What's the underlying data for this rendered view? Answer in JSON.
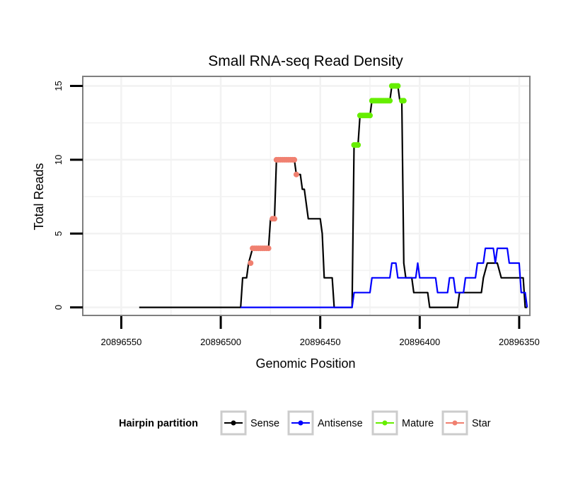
{
  "chart_data": {
    "type": "line",
    "title": "Small RNA-seq Read Density",
    "xlabel": "Genomic Position",
    "ylabel": "Total Reads",
    "x_reversed": true,
    "xlim": [
      20896569,
      20896345
    ],
    "ylim": [
      -0.5,
      15.6
    ],
    "x_ticks": [
      20896550,
      20896500,
      20896450,
      20896400,
      20896350
    ],
    "y_ticks": [
      0,
      5,
      10,
      15
    ],
    "grid": true,
    "legend": {
      "title": "Hairpin partition",
      "position": "bottom",
      "entries": [
        {
          "name": "Sense",
          "color": "#000000"
        },
        {
          "name": "Antisense",
          "color": "#0000ff"
        },
        {
          "name": "Mature",
          "color": "#66ee00"
        },
        {
          "name": "Star",
          "color": "#f08070"
        }
      ]
    },
    "series": [
      {
        "name": "Sense",
        "color": "#000000",
        "points": [
          [
            20896541,
            0
          ],
          [
            20896490,
            0
          ],
          [
            20896489,
            2
          ],
          [
            20896487,
            2
          ],
          [
            20896486,
            3
          ],
          [
            20896484,
            4
          ],
          [
            20896476,
            4
          ],
          [
            20896475,
            6
          ],
          [
            20896473,
            6
          ],
          [
            20896472,
            10
          ],
          [
            20896463,
            10
          ],
          [
            20896462,
            9
          ],
          [
            20896460,
            9
          ],
          [
            20896459,
            8
          ],
          [
            20896458,
            8
          ],
          [
            20896456,
            6
          ],
          [
            20896450,
            6
          ],
          [
            20896449,
            5
          ],
          [
            20896448,
            2
          ],
          [
            20896444,
            2
          ],
          [
            20896443,
            0
          ],
          [
            20896434,
            0
          ],
          [
            20896433,
            11
          ],
          [
            20896431,
            11
          ],
          [
            20896430,
            13
          ],
          [
            20896425,
            13
          ],
          [
            20896424,
            14
          ],
          [
            20896415,
            14
          ],
          [
            20896414,
            15
          ],
          [
            20896411,
            15
          ],
          [
            20896410,
            14
          ],
          [
            20896409,
            14
          ],
          [
            20896408,
            3
          ],
          [
            20896407,
            2
          ],
          [
            20896404,
            2
          ],
          [
            20896403,
            1
          ],
          [
            20896396,
            1
          ],
          [
            20896395,
            0
          ],
          [
            20896381,
            0
          ],
          [
            20896380,
            1
          ],
          [
            20896369,
            1
          ],
          [
            20896368,
            2
          ],
          [
            20896366,
            3
          ],
          [
            20896361,
            3
          ],
          [
            20896359,
            2
          ],
          [
            20896348,
            2
          ],
          [
            20896347,
            0
          ],
          [
            20896346,
            0
          ]
        ]
      },
      {
        "name": "Antisense",
        "color": "#0000ff",
        "points": [
          [
            20896490,
            0
          ],
          [
            20896434,
            0
          ],
          [
            20896433,
            1
          ],
          [
            20896425,
            1
          ],
          [
            20896424,
            2
          ],
          [
            20896415,
            2
          ],
          [
            20896414,
            3
          ],
          [
            20896412,
            3
          ],
          [
            20896411,
            2
          ],
          [
            20896402,
            2
          ],
          [
            20896401,
            3
          ],
          [
            20896400,
            2
          ],
          [
            20896392,
            2
          ],
          [
            20896391,
            1
          ],
          [
            20896386,
            1
          ],
          [
            20896385,
            2
          ],
          [
            20896383,
            2
          ],
          [
            20896382,
            1
          ],
          [
            20896378,
            1
          ],
          [
            20896377,
            2
          ],
          [
            20896372,
            2
          ],
          [
            20896371,
            3
          ],
          [
            20896368,
            3
          ],
          [
            20896367,
            4
          ],
          [
            20896363,
            4
          ],
          [
            20896362,
            3
          ],
          [
            20896361,
            4
          ],
          [
            20896356,
            4
          ],
          [
            20896355,
            3
          ],
          [
            20896350,
            3
          ],
          [
            20896349,
            1
          ],
          [
            20896347,
            1
          ],
          [
            20896346,
            0
          ]
        ]
      },
      {
        "name": "Mature",
        "color": "#66ee00",
        "points": [
          [
            20896433,
            11
          ],
          [
            20896432,
            11
          ],
          [
            20896431,
            11
          ],
          [
            20896430,
            13
          ],
          [
            20896429,
            13
          ],
          [
            20896428,
            13
          ],
          [
            20896427,
            13
          ],
          [
            20896426,
            13
          ],
          [
            20896425,
            13
          ],
          [
            20896424,
            14
          ],
          [
            20896423,
            14
          ],
          [
            20896422,
            14
          ],
          [
            20896421,
            14
          ],
          [
            20896420,
            14
          ],
          [
            20896419,
            14
          ],
          [
            20896418,
            14
          ],
          [
            20896417,
            14
          ],
          [
            20896416,
            14
          ],
          [
            20896415,
            14
          ],
          [
            20896414,
            15
          ],
          [
            20896413,
            15
          ],
          [
            20896412,
            15
          ],
          [
            20896411,
            15
          ],
          [
            20896409,
            14
          ],
          [
            20896408,
            14
          ]
        ]
      },
      {
        "name": "Star",
        "color": "#f08070",
        "points": [
          [
            20896485,
            3
          ],
          [
            20896484,
            4
          ],
          [
            20896483,
            4
          ],
          [
            20896482,
            4
          ],
          [
            20896481,
            4
          ],
          [
            20896480,
            4
          ],
          [
            20896479,
            4
          ],
          [
            20896478,
            4
          ],
          [
            20896477,
            4
          ],
          [
            20896476,
            4
          ],
          [
            20896474,
            6
          ],
          [
            20896473,
            6
          ],
          [
            20896472,
            10
          ],
          [
            20896471,
            10
          ],
          [
            20896470,
            10
          ],
          [
            20896469,
            10
          ],
          [
            20896468,
            10
          ],
          [
            20896467,
            10
          ],
          [
            20896466,
            10
          ],
          [
            20896465,
            10
          ],
          [
            20896464,
            10
          ],
          [
            20896463,
            10
          ],
          [
            20896462,
            9
          ]
        ]
      }
    ]
  }
}
